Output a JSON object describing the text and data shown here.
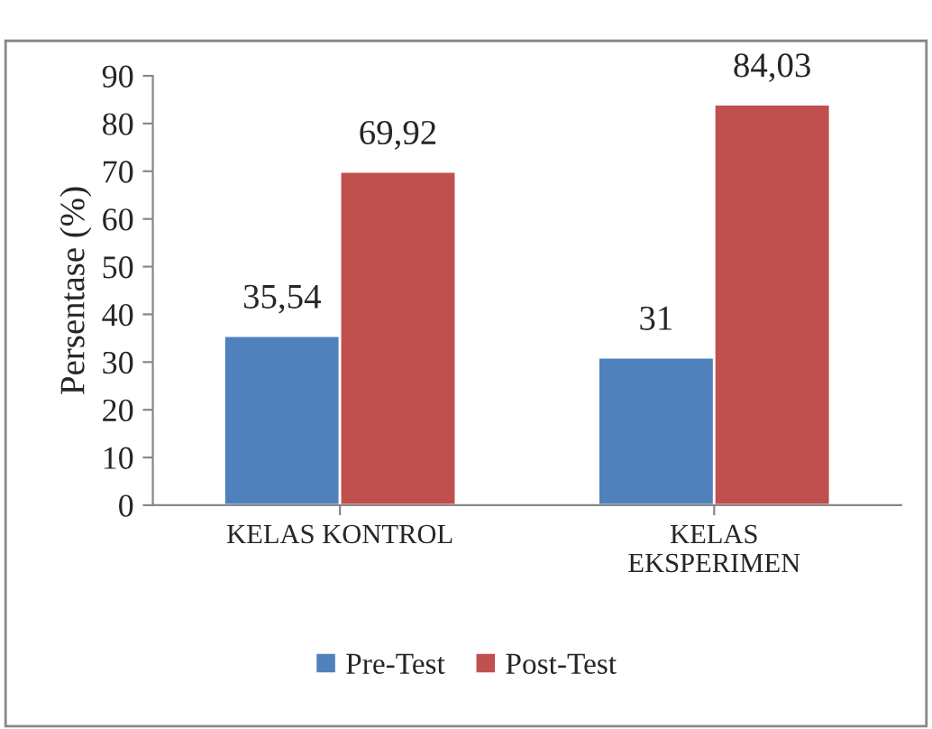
{
  "chart_data": {
    "type": "bar",
    "ylabel": "Persentase (%)",
    "categories": [
      "KELAS KONTROL",
      "KELAS\nEKSPERIMEN"
    ],
    "series": [
      {
        "name": "Pre-Test",
        "color": "#4f81bd",
        "values": [
          35.54,
          31
        ],
        "value_labels": [
          "35,54",
          "31"
        ]
      },
      {
        "name": "Post-Test",
        "color": "#c0504d",
        "values": [
          69.92,
          84.03
        ],
        "value_labels": [
          "69,92",
          "84,03"
        ]
      }
    ],
    "ylim": [
      0,
      90
    ],
    "yticks": [
      0,
      10,
      20,
      30,
      40,
      50,
      60,
      70,
      80,
      90
    ],
    "grid": false,
    "legend": "bottom"
  }
}
